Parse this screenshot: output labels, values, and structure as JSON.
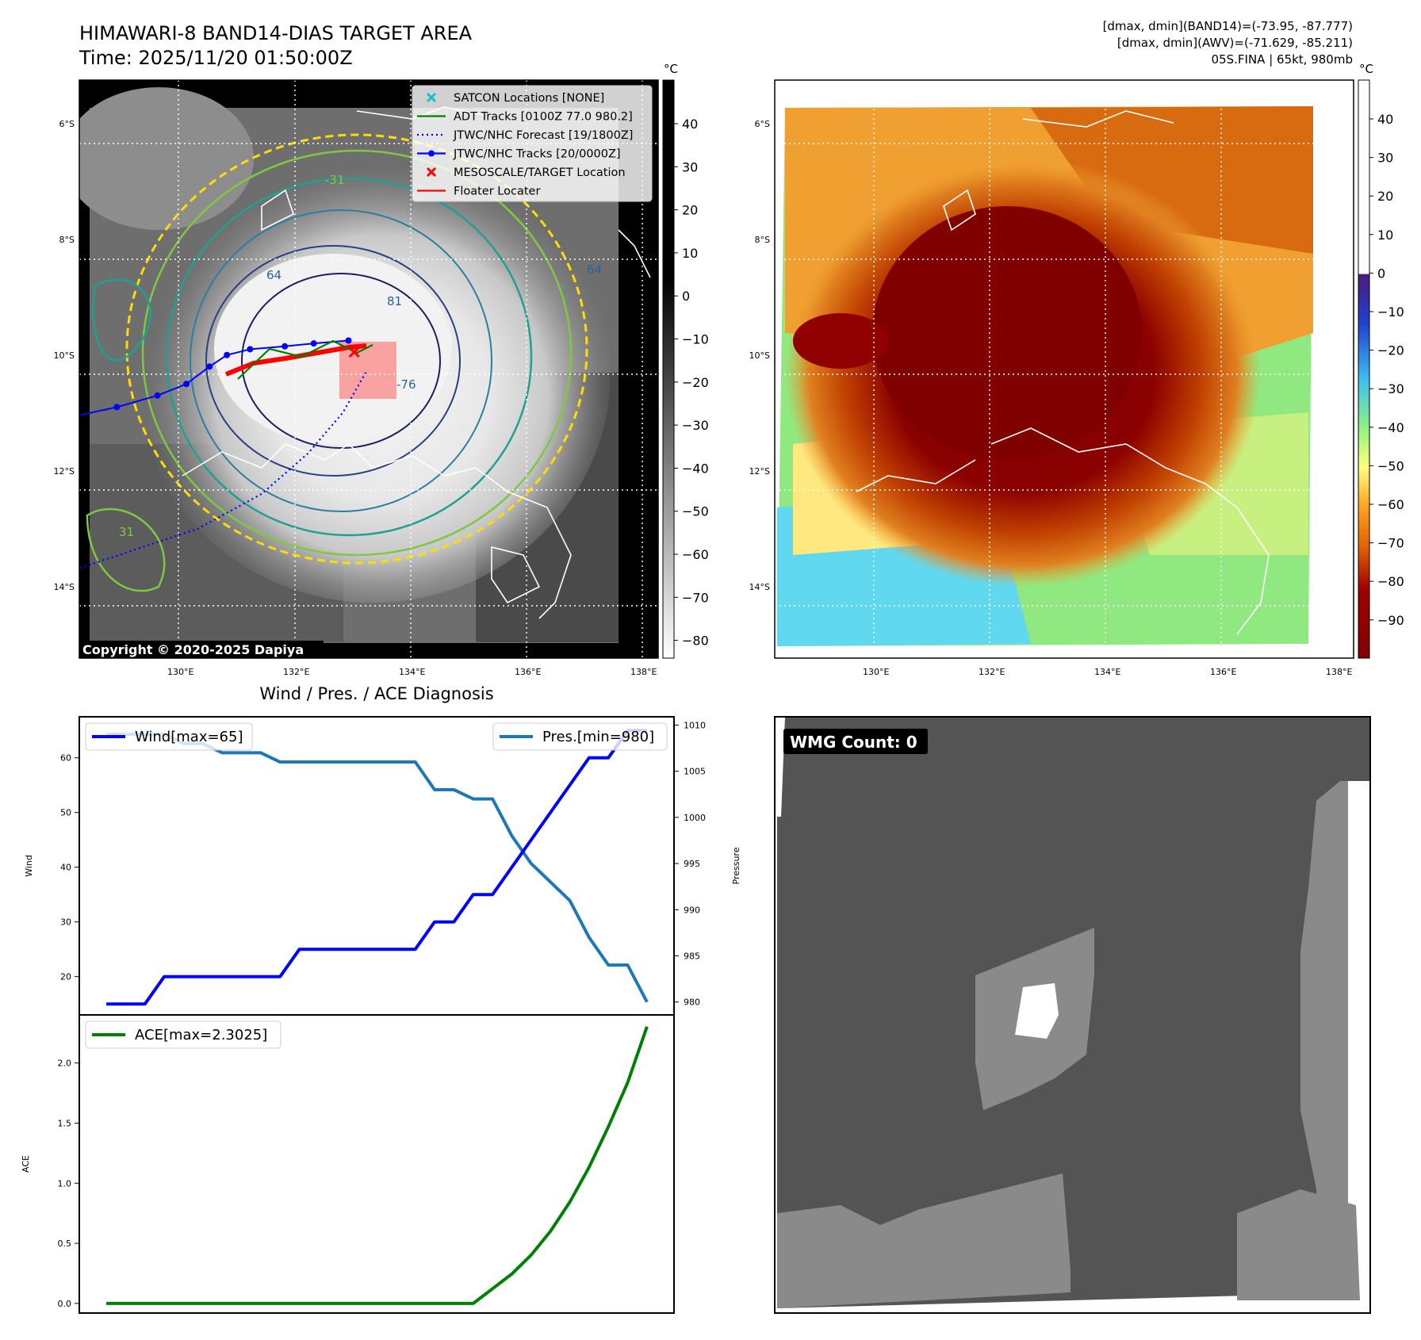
{
  "header": {
    "title": "HIMAWARI-8 BAND14-DIAS TARGET AREA",
    "time": "Time: 2025/11/20 01:50:00Z",
    "stats_band14": "[dmax, dmin](BAND14)=(-73.95, -87.777)",
    "stats_awv": "[dmax, dmin](AWV)=(-71.629, -85.211)",
    "storm_info": "05S.FINA | 65kt, 980mb"
  },
  "ir_panel": {
    "unit": "°C",
    "copyright": "Copyright © 2020-2025 Dapiya",
    "lat_labels": [
      "6°S",
      "8°S",
      "10°S",
      "12°S",
      "14°S"
    ],
    "lon_labels": [
      "130°E",
      "132°E",
      "134°E",
      "136°E",
      "138°E"
    ],
    "colorbar_ticks": [
      "40",
      "30",
      "20",
      "10",
      "0",
      "−10",
      "−20",
      "−30",
      "−40",
      "−50",
      "−60",
      "−70",
      "−80"
    ],
    "contour_labels": [
      "64",
      "81",
      "-76",
      "-31",
      "64",
      "31"
    ],
    "legend": [
      {
        "label": "SATCON Locations [NONE]",
        "color": "#17becf",
        "marker": "x"
      },
      {
        "label": "ADT Tracks [0100Z 77.0 980.2]",
        "color": "#008000",
        "marker": "line"
      },
      {
        "label": "JTWC/NHC Forecast [19/1800Z]",
        "color": "#0000ff",
        "marker": "dotted"
      },
      {
        "label": "JTWC/NHC Tracks [20/0000Z]",
        "color": "#0000ff",
        "marker": "line-dot"
      },
      {
        "label": "MESOSCALE/TARGET Location",
        "color": "#ff0000",
        "marker": "x"
      },
      {
        "label": "Floater Locater",
        "color": "#ff0000",
        "marker": "line"
      }
    ],
    "track_points": [
      {
        "lon": 128.2,
        "lat": -11.05
      },
      {
        "lon": 128.9,
        "lat": -10.9
      },
      {
        "lon": 129.6,
        "lat": -10.7
      },
      {
        "lon": 130.1,
        "lat": -10.5
      },
      {
        "lon": 130.5,
        "lat": -10.2
      },
      {
        "lon": 130.8,
        "lat": -10.0
      },
      {
        "lon": 131.2,
        "lat": -9.9
      },
      {
        "lon": 131.8,
        "lat": -9.85
      },
      {
        "lon": 132.3,
        "lat": -9.8
      },
      {
        "lon": 132.9,
        "lat": -9.75
      }
    ],
    "forecast_points": [
      {
        "lon": 133.2,
        "lat": -10.3
      },
      {
        "lon": 132.8,
        "lat": -11.0
      },
      {
        "lon": 132.2,
        "lat": -11.7
      },
      {
        "lon": 131.4,
        "lat": -12.4
      },
      {
        "lon": 130.3,
        "lat": -13.0
      },
      {
        "lon": 128.2,
        "lat": -13.7
      }
    ],
    "target": {
      "lon": 133.0,
      "lat": -9.95
    }
  },
  "awv_panel": {
    "unit": "°C",
    "lat_labels": [
      "6°S",
      "8°S",
      "10°S",
      "12°S",
      "14°S"
    ],
    "lon_labels": [
      "130°E",
      "132°E",
      "134°E",
      "136°E",
      "138°E"
    ],
    "colorbar_ticks": [
      "40",
      "30",
      "20",
      "10",
      "0",
      "−10",
      "−20",
      "−30",
      "−40",
      "−50",
      "−60",
      "−70",
      "−80",
      "−90"
    ]
  },
  "chart_data": [
    {
      "type": "line",
      "title": "Wind / Pres. / ACE Diagnosis",
      "ylabel": "Wind",
      "ylabel_right": "Pressure",
      "ylim": [
        13,
        67.5
      ],
      "ylim_right": [
        978.6,
        1010.9
      ],
      "yticks": [
        20,
        30,
        40,
        50,
        60
      ],
      "yticks_right": [
        980,
        985,
        990,
        995,
        1000,
        1005,
        1010
      ],
      "x": [
        0,
        1,
        2,
        3,
        4,
        5,
        6,
        7,
        8,
        9,
        10,
        11,
        12,
        13,
        14,
        15,
        16,
        17,
        18,
        19,
        20,
        21,
        22,
        23,
        24,
        25,
        26,
        27,
        28
      ],
      "series": [
        {
          "name": "Wind",
          "legend": "Wind[max=65]",
          "axis": "left",
          "color": "#0000ff",
          "values": [
            15,
            15,
            15,
            20,
            20,
            20,
            20,
            20,
            20,
            20,
            25,
            25,
            25,
            25,
            25,
            25,
            25,
            30,
            30,
            35,
            35,
            40,
            45,
            50,
            55,
            60,
            60,
            65,
            65
          ]
        },
        {
          "name": "Pres.",
          "legend": "Pres.[min=980]",
          "axis": "right",
          "color": "#1f77b4",
          "values": [
            1009,
            1009,
            1009,
            1009,
            1008,
            1008,
            1007,
            1007,
            1007,
            1006,
            1006,
            1006,
            1006,
            1006,
            1006,
            1006,
            1006,
            1003,
            1003,
            1002,
            1002,
            998,
            995,
            993,
            991,
            987,
            984,
            984,
            980
          ]
        }
      ]
    },
    {
      "type": "line",
      "ylabel": "ACE",
      "ylim": [
        -0.08,
        2.4
      ],
      "yticks": [
        0.0,
        0.5,
        1.0,
        1.5,
        2.0
      ],
      "ytick_labels": [
        "0.0",
        "0.5",
        "1.0",
        "1.5",
        "2.0"
      ],
      "x": [
        0,
        1,
        2,
        3,
        4,
        5,
        6,
        7,
        8,
        9,
        10,
        11,
        12,
        13,
        14,
        15,
        16,
        17,
        18,
        19,
        20,
        21,
        22,
        23,
        24,
        25,
        26,
        27,
        28
      ],
      "series": [
        {
          "name": "ACE",
          "legend": "ACE[max=2.3025]",
          "color": "#008000",
          "values": [
            0,
            0,
            0,
            0,
            0,
            0,
            0,
            0,
            0,
            0,
            0,
            0,
            0,
            0,
            0,
            0,
            0,
            0,
            0,
            0,
            0.1225,
            0.245,
            0.4025,
            0.6,
            0.8425,
            1.1325,
            1.47,
            1.8375,
            2.3025
          ]
        }
      ]
    }
  ],
  "wmg_panel": {
    "label": "WMG Count: 0"
  }
}
